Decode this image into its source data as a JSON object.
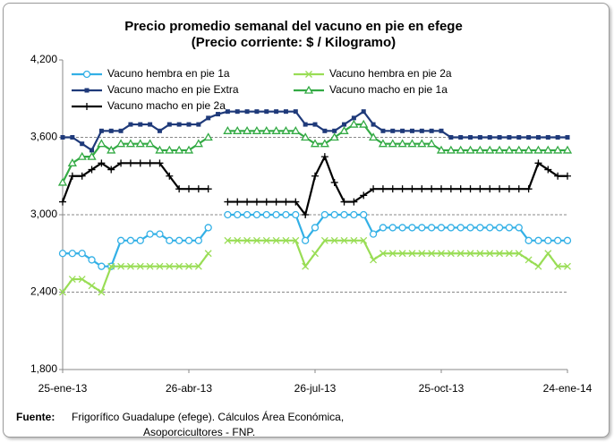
{
  "chart_data": {
    "type": "line",
    "title": "Precio promedio semanal del vacuno en pie en efege",
    "subtitle": "(Precio corriente: $ / Kilogramo)",
    "source_label": "Fuente:",
    "source": [
      "Frigorífico Guadalupe (efege). Cálculos Área Económica,",
      "Asoporcicultores - FNP."
    ],
    "categories": [
      "25-ene-13",
      null,
      null,
      null,
      null,
      null,
      null,
      null,
      null,
      null,
      null,
      null,
      null,
      "26-abr-13",
      null,
      null,
      null,
      null,
      null,
      null,
      null,
      null,
      null,
      null,
      null,
      null,
      "26-jul-13",
      null,
      null,
      null,
      null,
      null,
      null,
      null,
      null,
      null,
      null,
      null,
      null,
      "25-oct-13",
      null,
      null,
      null,
      null,
      null,
      null,
      null,
      null,
      null,
      null,
      null,
      null,
      "24-ene-14"
    ],
    "ylim": [
      1800,
      4200
    ],
    "yticks": [
      {
        "value": 1800,
        "label": "1,800"
      },
      {
        "value": 2400,
        "label": "2,400"
      },
      {
        "value": 3000,
        "label": "3,000"
      },
      {
        "value": 3600,
        "label": "3,600"
      },
      {
        "value": 4200,
        "label": "4,200"
      }
    ],
    "grid": true,
    "series": [
      {
        "name": "Vacuno hembra en pie 1a",
        "color": "#33b0e6",
        "marker": "circle",
        "values": [
          2700,
          2700,
          2700,
          2650,
          2600,
          2600,
          2800,
          2800,
          2800,
          2850,
          2850,
          2800,
          2800,
          2800,
          2800,
          2900,
          null,
          3000,
          3000,
          3000,
          3000,
          3000,
          3000,
          3000,
          3000,
          2800,
          2900,
          3000,
          3000,
          3000,
          3000,
          3000,
          2850,
          2900,
          2900,
          2900,
          2900,
          2900,
          2900,
          2900,
          2900,
          2900,
          2900,
          2900,
          2900,
          2900,
          2900,
          2900,
          2800,
          2800,
          2800,
          2800,
          2800
        ]
      },
      {
        "name": "Vacuno hembra en pie 2a",
        "color": "#99dd55",
        "marker": "x",
        "values": [
          2400,
          2500,
          2500,
          2450,
          2400,
          2600,
          2600,
          2600,
          2600,
          2600,
          2600,
          2600,
          2600,
          2600,
          2600,
          2700,
          null,
          2800,
          2800,
          2800,
          2800,
          2800,
          2800,
          2800,
          2800,
          2600,
          2700,
          2800,
          2800,
          2800,
          2800,
          2800,
          2650,
          2700,
          2700,
          2700,
          2700,
          2700,
          2700,
          2700,
          2700,
          2700,
          2700,
          2700,
          2700,
          2700,
          2700,
          2700,
          2650,
          2600,
          2700,
          2600,
          2600
        ]
      },
      {
        "name": "Vacuno macho en pie Extra",
        "color": "#1f3a7a",
        "marker": "square",
        "values": [
          3600,
          3600,
          3550,
          3500,
          3650,
          3650,
          3650,
          3700,
          3700,
          3700,
          3650,
          3700,
          3700,
          3700,
          3700,
          3750,
          3780,
          3800,
          3800,
          3800,
          3800,
          3800,
          3800,
          3800,
          3800,
          3700,
          3700,
          3650,
          3650,
          3700,
          3750,
          3800,
          3700,
          3650,
          3650,
          3650,
          3650,
          3650,
          3650,
          3650,
          3600,
          3600,
          3600,
          3600,
          3600,
          3600,
          3600,
          3600,
          3600,
          3600,
          3600,
          3600,
          3600
        ]
      },
      {
        "name": "Vacuno macho en pie 1a",
        "color": "#33aa44",
        "marker": "triangle",
        "values": [
          3250,
          3400,
          3450,
          3450,
          3550,
          3500,
          3550,
          3550,
          3550,
          3550,
          3500,
          3500,
          3500,
          3500,
          3550,
          3600,
          null,
          3650,
          3650,
          3650,
          3650,
          3650,
          3650,
          3650,
          3650,
          3600,
          3550,
          3550,
          3600,
          3650,
          3700,
          3700,
          3600,
          3550,
          3550,
          3550,
          3550,
          3550,
          3550,
          3500,
          3500,
          3500,
          3500,
          3500,
          3500,
          3500,
          3500,
          3500,
          3500,
          3500,
          3500,
          3500,
          3500
        ]
      },
      {
        "name": "Vacuno macho en pie 2a",
        "color": "#000000",
        "marker": "plus",
        "values": [
          3100,
          3300,
          3300,
          3350,
          3400,
          3350,
          3400,
          3400,
          3400,
          3400,
          3400,
          3300,
          3200,
          3200,
          3200,
          3200,
          null,
          3100,
          3100,
          3100,
          3100,
          3100,
          3100,
          3100,
          3100,
          3000,
          3300,
          3450,
          3250,
          3100,
          3100,
          3150,
          3200,
          3200,
          3200,
          3200,
          3200,
          3200,
          3200,
          3200,
          3200,
          3200,
          3200,
          3200,
          3200,
          3200,
          3200,
          3200,
          3200,
          3400,
          3350,
          3300,
          3300
        ]
      }
    ]
  }
}
